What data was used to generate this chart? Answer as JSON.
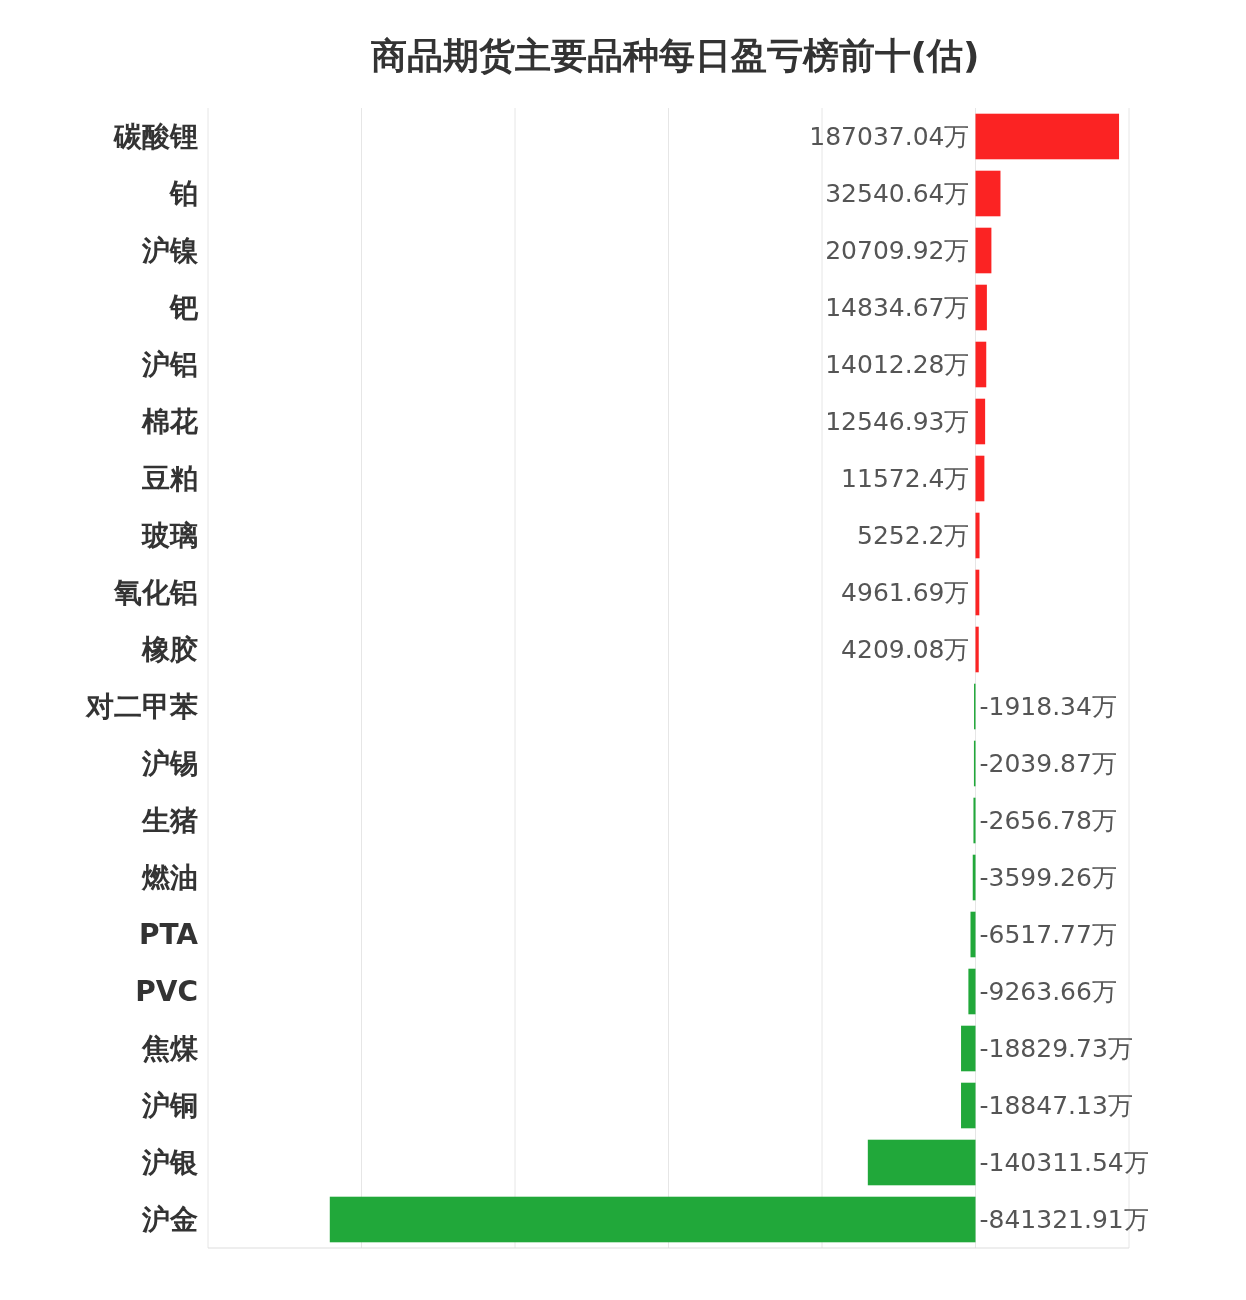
{
  "chart_data": {
    "type": "bar",
    "orientation": "horizontal",
    "title": "商品期货主要品种每日盈亏榜前十(估)",
    "categories": [
      "碳酸锂",
      "铂",
      "沪镍",
      "钯",
      "沪铝",
      "棉花",
      "豆粕",
      "玻璃",
      "氧化铝",
      "橡胶",
      "对二甲苯",
      "沪锡",
      "生猪",
      "燃油",
      "PTA",
      "PVC",
      "焦煤",
      "沪铜",
      "沪银",
      "沪金"
    ],
    "values": [
      187037.04,
      32540.64,
      20709.92,
      14834.67,
      14012.28,
      12546.93,
      11572.4,
      5252.2,
      4961.69,
      4209.08,
      -1918.34,
      -2039.87,
      -2656.78,
      -3599.26,
      -6517.77,
      -9263.66,
      -18829.73,
      -18847.13,
      -140311.54,
      -841321.91
    ],
    "value_labels": [
      "187037.04万",
      "32540.64万",
      "20709.92万",
      "14834.67万",
      "14012.28万",
      "12546.93万",
      "11572.4万",
      "5252.2万",
      "4961.69万",
      "4209.08万",
      "-1918.34万",
      "-2039.87万",
      "-2656.78万",
      "-3599.26万",
      "-6517.77万",
      "-9263.66万",
      "-18829.73万",
      "-18847.13万",
      "-140311.54万",
      "-841321.91万"
    ],
    "colors": [
      "#fb2323",
      "#fb2323",
      "#fb2323",
      "#fb2323",
      "#fb2323",
      "#fb2323",
      "#fb2323",
      "#fb2323",
      "#fb2323",
      "#fb2323",
      "#21a83a",
      "#21a83a",
      "#21a83a",
      "#21a83a",
      "#21a83a",
      "#21a83a",
      "#21a83a",
      "#21a83a",
      "#21a83a",
      "#21a83a"
    ],
    "xlim": [
      -1000000,
      200000
    ],
    "xticks": [
      {
        "value": -1000000,
        "label": null
      },
      {
        "value": -800000,
        "label": null
      },
      {
        "value": -600000,
        "label": null
      },
      {
        "value": -400000,
        "label": null
      },
      {
        "value": -200000,
        "label": null
      },
      {
        "value": 0,
        "label": null
      },
      {
        "value": 200000,
        "label": null
      }
    ],
    "grid": "x",
    "tick_labels": "y"
  }
}
